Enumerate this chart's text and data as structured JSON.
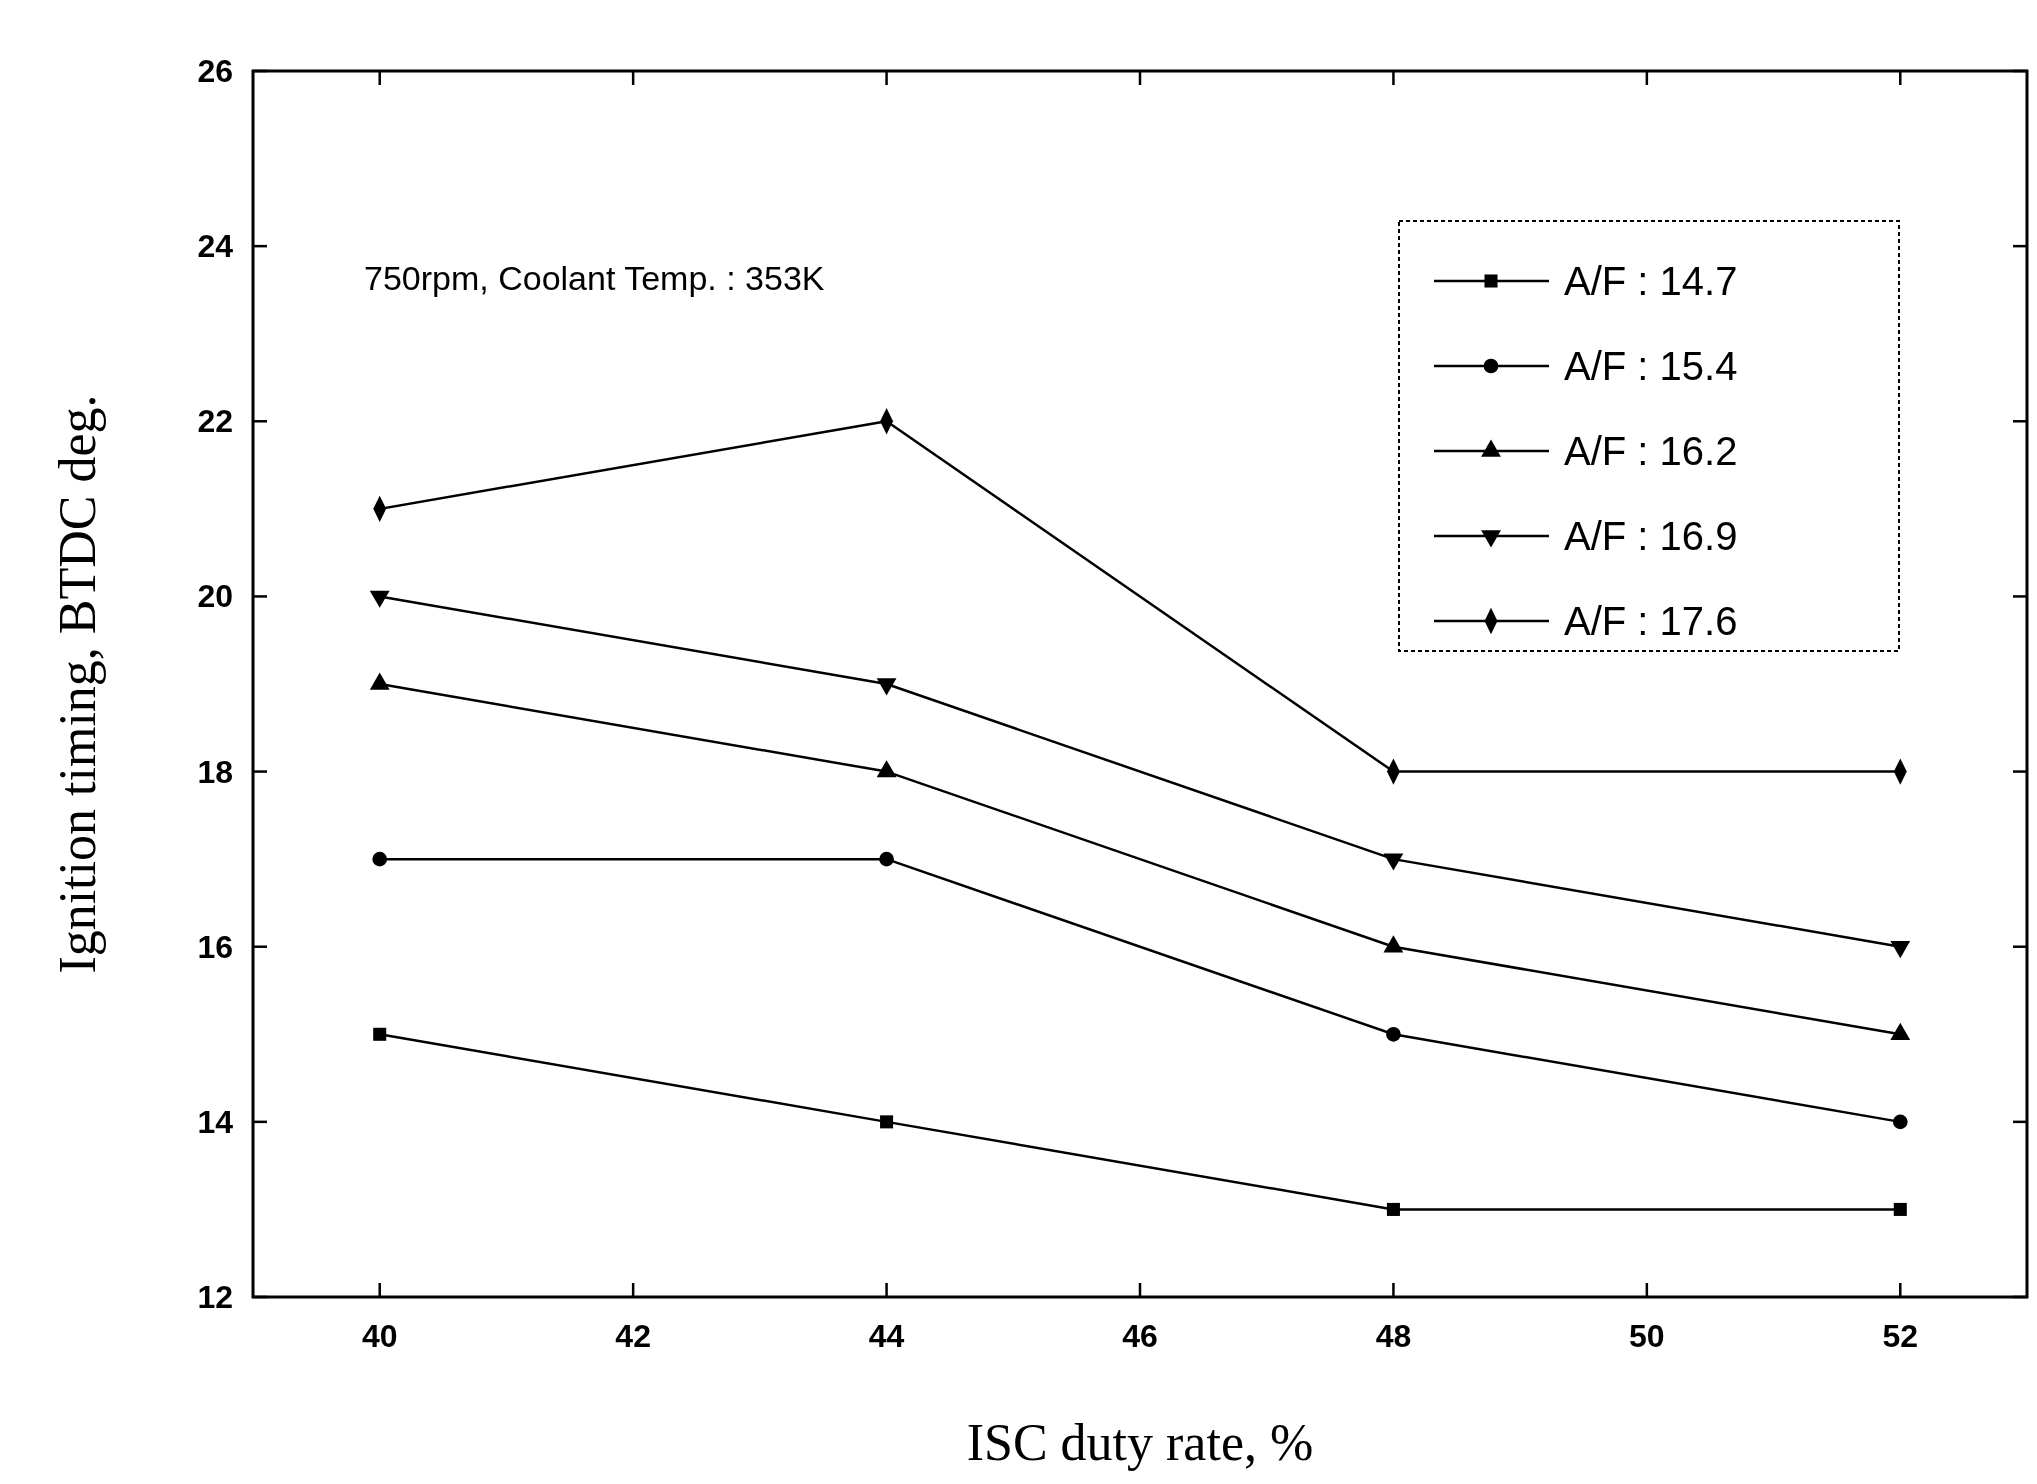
{
  "chart_data": {
    "type": "line",
    "xlabel": "ISC duty rate, %",
    "ylabel": "Ignition timing, BTDC deg.",
    "annotations": [
      "750rpm, Coolant Temp. : 353K"
    ],
    "x": [
      40,
      44,
      48,
      52
    ],
    "xlim": [
      39,
      53
    ],
    "xticks": [
      40,
      42,
      44,
      46,
      48,
      50,
      52
    ],
    "ylim": [
      12,
      26
    ],
    "yticks": [
      12,
      14,
      16,
      18,
      20,
      22,
      24,
      26
    ],
    "grid": false,
    "legend": "top right",
    "line_style": "solid",
    "series": [
      {
        "name": "A/F : 14.7",
        "color": "#000000",
        "marker": "square",
        "values": [
          15,
          14,
          13,
          13
        ]
      },
      {
        "name": "A/F : 15.4",
        "color": "#000000",
        "marker": "circle",
        "values": [
          17,
          17,
          15,
          14
        ]
      },
      {
        "name": "A/F : 16.2",
        "color": "#000000",
        "marker": "triangle",
        "values": [
          19,
          18,
          16,
          15
        ]
      },
      {
        "name": "A/F : 16.9",
        "color": "#000000",
        "marker": "triangle-down",
        "values": [
          20,
          19,
          17,
          16
        ]
      },
      {
        "name": "A/F : 17.6",
        "color": "#000000",
        "marker": "diamond",
        "values": [
          21,
          22,
          18,
          18
        ]
      }
    ]
  }
}
